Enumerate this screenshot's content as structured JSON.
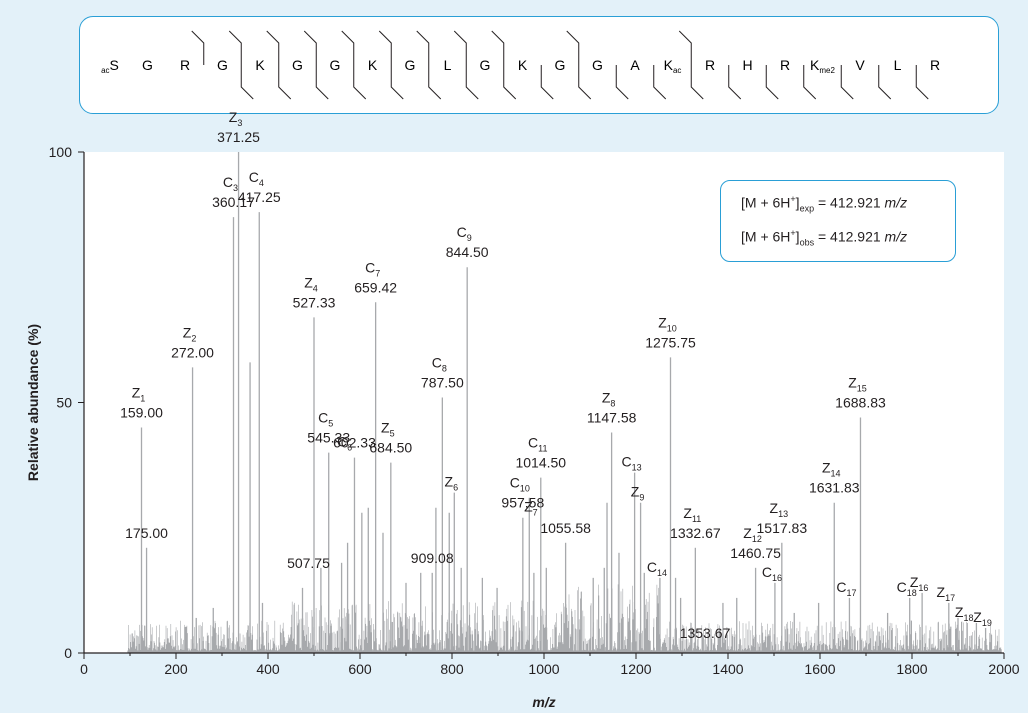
{
  "sequence": {
    "residues": [
      {
        "pre": "ac",
        "aa": "S"
      },
      {
        "aa": "G"
      },
      {
        "aa": "R"
      },
      {
        "aa": "G"
      },
      {
        "aa": "K"
      },
      {
        "aa": "G"
      },
      {
        "aa": "G"
      },
      {
        "aa": "K"
      },
      {
        "aa": "G"
      },
      {
        "aa": "L"
      },
      {
        "aa": "G"
      },
      {
        "aa": "K"
      },
      {
        "aa": "G"
      },
      {
        "aa": "G"
      },
      {
        "aa": "A"
      },
      {
        "aa": "K",
        "sub": "ac"
      },
      {
        "aa": "R"
      },
      {
        "aa": "H"
      },
      {
        "aa": "R"
      },
      {
        "aa": "K",
        "sub": "me2"
      },
      {
        "aa": "V"
      },
      {
        "aa": "L"
      },
      {
        "aa": "R"
      }
    ],
    "c_cleavage_after": [
      3,
      4,
      5,
      6,
      7,
      8,
      9,
      10,
      11,
      13,
      16
    ],
    "z_cleavage_after": [
      4,
      5,
      6,
      7,
      8,
      9,
      10,
      11,
      12,
      13,
      14,
      15,
      16,
      17,
      18,
      19,
      20,
      21,
      22
    ]
  },
  "mass_box": {
    "row1": {
      "prefix": "[M + 6H",
      "sup": "+",
      "close": "]",
      "sub": "exp",
      "value": " = 412.921 ",
      "unit": "m/z"
    },
    "row2": {
      "prefix": "[M + 6H",
      "sup": "+",
      "close": "]",
      "sub": "obs",
      "value": " = 412.921 ",
      "unit": "m/z"
    }
  },
  "chart_data": {
    "type": "spectrum",
    "xlabel": "m/z",
    "ylabel": "Relative abundance (%)",
    "xlim": [
      0,
      2000
    ],
    "ylim": [
      0,
      100
    ],
    "xticks": [
      0,
      200,
      400,
      600,
      800,
      1000,
      1200,
      1400,
      1600,
      1800,
      2000
    ],
    "yticks": [
      0,
      50,
      100
    ],
    "peaks": [
      {
        "x": 125,
        "y": 45
      },
      {
        "x": 136,
        "y": 21
      },
      {
        "x": 236,
        "y": 57
      },
      {
        "x": 244,
        "y": 7
      },
      {
        "x": 281,
        "y": 9
      },
      {
        "x": 325,
        "y": 87
      },
      {
        "x": 336,
        "y": 100
      },
      {
        "x": 361,
        "y": 58
      },
      {
        "x": 381,
        "y": 88
      },
      {
        "x": 388,
        "y": 10
      },
      {
        "x": 475,
        "y": 13
      },
      {
        "x": 500,
        "y": 67
      },
      {
        "x": 515,
        "y": 17
      },
      {
        "x": 532,
        "y": 40
      },
      {
        "x": 560,
        "y": 18
      },
      {
        "x": 573,
        "y": 22
      },
      {
        "x": 588,
        "y": 39
      },
      {
        "x": 604,
        "y": 28
      },
      {
        "x": 618,
        "y": 29
      },
      {
        "x": 634,
        "y": 70
      },
      {
        "x": 650,
        "y": 24
      },
      {
        "x": 667,
        "y": 38
      },
      {
        "x": 700,
        "y": 14
      },
      {
        "x": 732,
        "y": 16
      },
      {
        "x": 757,
        "y": 16
      },
      {
        "x": 765,
        "y": 29
      },
      {
        "x": 779,
        "y": 51
      },
      {
        "x": 794,
        "y": 28
      },
      {
        "x": 805,
        "y": 32
      },
      {
        "x": 820,
        "y": 17
      },
      {
        "x": 833,
        "y": 77
      },
      {
        "x": 866,
        "y": 15
      },
      {
        "x": 898,
        "y": 13
      },
      {
        "x": 954,
        "y": 27
      },
      {
        "x": 968,
        "y": 31
      },
      {
        "x": 978,
        "y": 16
      },
      {
        "x": 993,
        "y": 35
      },
      {
        "x": 1005,
        "y": 17
      },
      {
        "x": 1047,
        "y": 22
      },
      {
        "x": 1107,
        "y": 15
      },
      {
        "x": 1131,
        "y": 17
      },
      {
        "x": 1137,
        "y": 30
      },
      {
        "x": 1147,
        "y": 44
      },
      {
        "x": 1163,
        "y": 20
      },
      {
        "x": 1197,
        "y": 36
      },
      {
        "x": 1210,
        "y": 30
      },
      {
        "x": 1218,
        "y": 16
      },
      {
        "x": 1252,
        "y": 15
      },
      {
        "x": 1275,
        "y": 59
      },
      {
        "x": 1286,
        "y": 15
      },
      {
        "x": 1297,
        "y": 11
      },
      {
        "x": 1329,
        "y": 21
      },
      {
        "x": 1389,
        "y": 10
      },
      {
        "x": 1419,
        "y": 11
      },
      {
        "x": 1460,
        "y": 17
      },
      {
        "x": 1502,
        "y": 14
      },
      {
        "x": 1517,
        "y": 22
      },
      {
        "x": 1544,
        "y": 8
      },
      {
        "x": 1597,
        "y": 10
      },
      {
        "x": 1631,
        "y": 30
      },
      {
        "x": 1664,
        "y": 11
      },
      {
        "x": 1688,
        "y": 47
      },
      {
        "x": 1747,
        "y": 8
      },
      {
        "x": 1795,
        "y": 11
      },
      {
        "x": 1822,
        "y": 12
      },
      {
        "x": 1880,
        "y": 10
      },
      {
        "x": 1900,
        "y": 7
      },
      {
        "x": 1920,
        "y": 6
      },
      {
        "x": 1940,
        "y": 6
      },
      {
        "x": 1960,
        "y": 5
      }
    ],
    "annotations": [
      {
        "ion": "Z",
        "n": "1",
        "mass": "159.00",
        "x": 125,
        "y": 45
      },
      {
        "ion": "",
        "n": "",
        "mass": "175.00",
        "x": 136,
        "y": 21
      },
      {
        "ion": "Z",
        "n": "2",
        "mass": "272.00",
        "x": 236,
        "y": 57
      },
      {
        "ion": "C",
        "n": "3",
        "mass": "360.17",
        "x": 325,
        "y": 87
      },
      {
        "ion": "Z",
        "n": "3",
        "mass": "371.25",
        "x": 336,
        "y": 100
      },
      {
        "ion": "C",
        "n": "4",
        "mass": "417.25",
        "x": 381,
        "y": 88
      },
      {
        "ion": "",
        "n": "",
        "mass": "507.75",
        "x": 488,
        "y": 15
      },
      {
        "ion": "Z",
        "n": "4",
        "mass": "527.33",
        "x": 500,
        "y": 67
      },
      {
        "ion": "C",
        "n": "5",
        "mass": "545.33",
        "x": 532,
        "y": 40
      },
      {
        "ion": "C",
        "n": "6",
        "mass": "",
        "x": 573,
        "y": 40
      },
      {
        "ion": "",
        "n": "",
        "mass": "602.33",
        "x": 588,
        "y": 39
      },
      {
        "ion": "C",
        "n": "7",
        "mass": "659.42",
        "x": 634,
        "y": 70
      },
      {
        "ion": "Z",
        "n": "5",
        "mass": "684.50",
        "x": 667,
        "y": 38
      },
      {
        "ion": "C",
        "n": "8",
        "mass": "787.50",
        "x": 779,
        "y": 51
      },
      {
        "ion": "",
        "n": "",
        "mass": "909.08",
        "x": 757,
        "y": 16
      },
      {
        "ion": "Z",
        "n": "6",
        "mass": "",
        "x": 805,
        "y": 32
      },
      {
        "ion": "C",
        "n": "9",
        "mass": "844.50",
        "x": 833,
        "y": 77
      },
      {
        "ion": "C",
        "n": "10",
        "mass": "957.58",
        "x": 954,
        "y": 27
      },
      {
        "ion": "Z",
        "n": "7",
        "mass": "",
        "x": 978,
        "y": 27
      },
      {
        "ion": "C",
        "n": "11",
        "mass": "1014.50",
        "x": 993,
        "y": 35
      },
      {
        "ion": "",
        "n": "",
        "mass": "1055.58",
        "x": 1047,
        "y": 22
      },
      {
        "ion": "Z",
        "n": "8",
        "mass": "1147.58",
        "x": 1147,
        "y": 44
      },
      {
        "ion": "C",
        "n": "13",
        "mass": "",
        "x": 1197,
        "y": 36
      },
      {
        "ion": "Z",
        "n": "9",
        "mass": "",
        "x": 1210,
        "y": 30
      },
      {
        "ion": "C",
        "n": "14",
        "mass": "",
        "x": 1252,
        "y": 15
      },
      {
        "ion": "Z",
        "n": "10",
        "mass": "1275.75",
        "x": 1275,
        "y": 59
      },
      {
        "ion": "Z",
        "n": "11",
        "mass": "1332.67",
        "x": 1329,
        "y": 21
      },
      {
        "ion": "",
        "n": "",
        "mass": "1353.67",
        "x": 1350,
        "y": 1
      },
      {
        "ion": "Z",
        "n": "12",
        "mass": "1460.75",
        "x": 1460,
        "y": 17
      },
      {
        "ion": "Z",
        "n": "13",
        "mass": "1517.83",
        "x": 1517,
        "y": 22
      },
      {
        "ion": "C",
        "n": "16",
        "mass": "",
        "x": 1502,
        "y": 14
      },
      {
        "ion": "Z",
        "n": "14",
        "mass": "1631.83",
        "x": 1631,
        "y": 30
      },
      {
        "ion": "C",
        "n": "17",
        "mass": "",
        "x": 1664,
        "y": 11
      },
      {
        "ion": "Z",
        "n": "15",
        "mass": "1688.83",
        "x": 1688,
        "y": 47
      },
      {
        "ion": "C",
        "n": "18",
        "mass": "",
        "x": 1795,
        "y": 11
      },
      {
        "ion": "Z",
        "n": "16",
        "mass": "",
        "x": 1822,
        "y": 12
      },
      {
        "ion": "Z",
        "n": "17",
        "mass": "",
        "x": 1880,
        "y": 10
      },
      {
        "ion": "Z",
        "n": "18",
        "mass": "",
        "x": 1920,
        "y": 6
      },
      {
        "ion": "Z",
        "n": "19",
        "mass": "",
        "x": 1960,
        "y": 5
      }
    ],
    "grid": false,
    "colors": {
      "peak": "#a7a9ac",
      "axis": "#231f20",
      "frame": "#2a9fd6",
      "background": "#e3f1f9"
    }
  }
}
